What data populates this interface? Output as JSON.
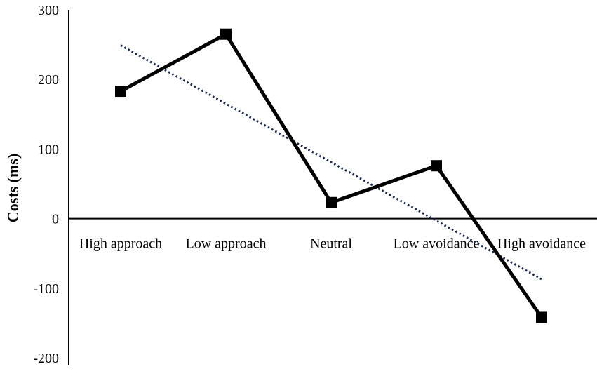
{
  "chart_data": {
    "type": "line",
    "title": "",
    "xlabel": "",
    "ylabel": "Costs (ms)",
    "categories": [
      "High approach",
      "Low approach",
      "Neutral",
      "Low avoidance",
      "High avoidance"
    ],
    "series": [
      {
        "name": "Costs",
        "values": [
          183,
          265,
          23,
          76,
          -142
        ],
        "color": "#000000",
        "marker": "square"
      }
    ],
    "trendline": {
      "type": "linear",
      "color": "#1a2a4a",
      "style": "dotted",
      "start": 249,
      "end": -87
    },
    "ylim": [
      -200,
      300
    ],
    "yticks": [
      300,
      200,
      100,
      0,
      -100,
      -200
    ],
    "ytick_labels": [
      "300",
      "200",
      "100",
      "0",
      "-100",
      "-200"
    ],
    "grid": false,
    "legend": "none"
  }
}
